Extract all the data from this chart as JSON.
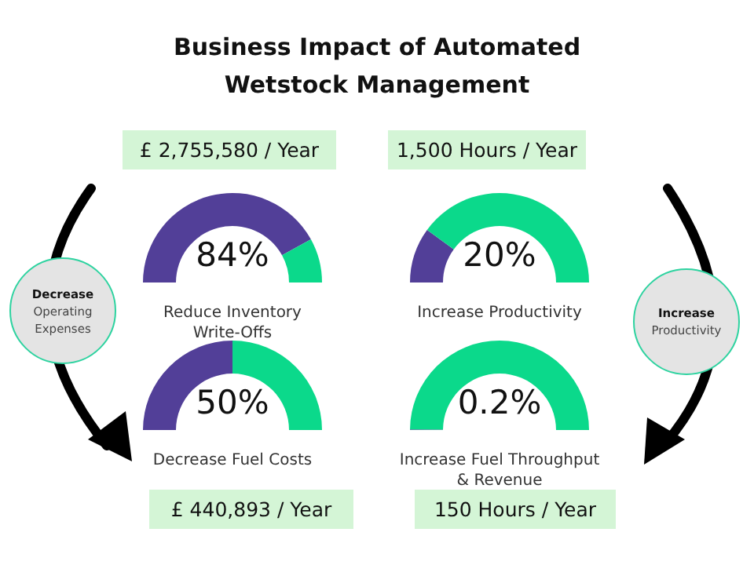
{
  "chart_data": [
    {
      "type": "other",
      "title": "Business Impact of Automated\nWetstock Management",
      "annotations": [
        "£ 2,755,580 / Year",
        "1,500 Hours / Year",
        "£ 440,893 / Year",
        "150 Hours / Year",
        "Decrease\nOperating\nExpenses",
        "Increase\nProductivity"
      ]
    },
    {
      "type": "donut",
      "title": "Reduce Inventory\nWrite-Offs",
      "categories": [
        null,
        null
      ],
      "values": [
        84,
        16
      ],
      "colors": [
        "#523f98",
        "#0bd98b"
      ],
      "annotations": [
        "84%"
      ]
    },
    {
      "type": "donut",
      "title": "Increase Productivity",
      "categories": [
        null,
        null
      ],
      "values": [
        20,
        80
      ],
      "colors": [
        "#523f98",
        "#0bd98b"
      ],
      "annotations": [
        "20%"
      ]
    },
    {
      "type": "donut",
      "title": "Decrease Fuel Costs",
      "categories": [
        null,
        null
      ],
      "values": [
        50,
        50
      ],
      "colors": [
        "#523f98",
        "#0bd98b"
      ],
      "annotations": [
        "50%"
      ]
    },
    {
      "type": "donut",
      "title": "Increase Fuel Throughput\n& Revenue",
      "categories": [
        null,
        null
      ],
      "values": [
        0.2,
        99.8
      ],
      "colors": [
        "#523f98",
        "#0bd98b"
      ],
      "annotations": [
        "0.2%"
      ]
    }
  ]
}
